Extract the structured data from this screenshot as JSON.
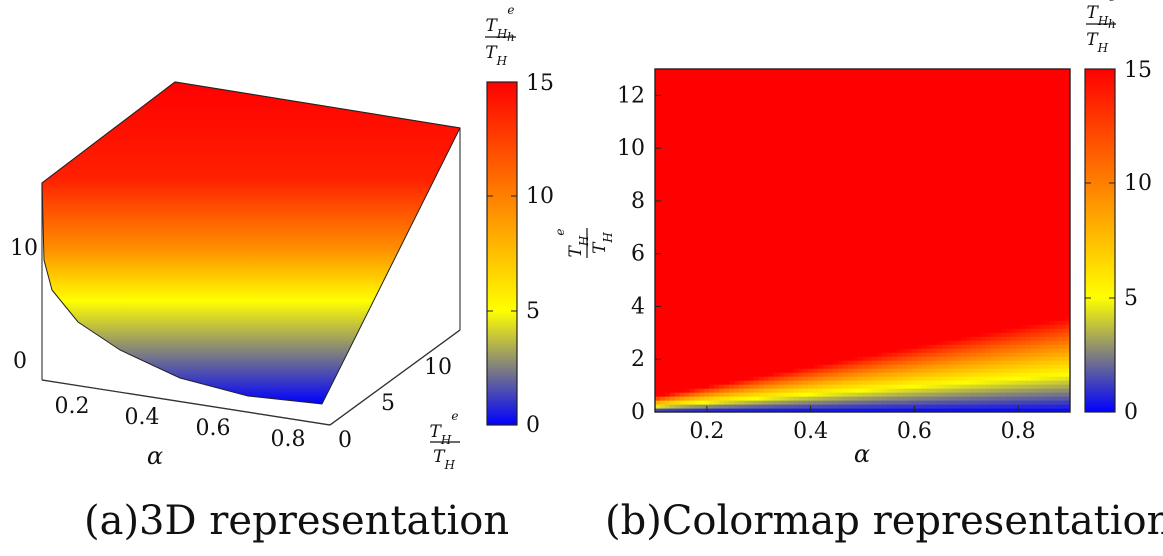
{
  "chart_data": [
    {
      "type": "heatmap",
      "variant": "3d-surface",
      "caption": "(a)3D representation",
      "xlabel": "α",
      "ylabel_frac": {
        "num": "T_H^e",
        "den": "T_H"
      },
      "xticks": [
        "0.2",
        "0.4",
        "0.6",
        "0.8"
      ],
      "yticks": [
        "0",
        "5",
        "10"
      ],
      "zticks": [
        "0",
        "10"
      ],
      "xlim": [
        0.1,
        0.9
      ],
      "ylim": [
        0,
        13
      ],
      "zlim": [
        0,
        15
      ],
      "colorbar": {
        "label_frac": {
          "num": "T_H^e",
          "den": "T_H^h"
        },
        "ticks": [
          "0",
          "5",
          "10",
          "15"
        ],
        "range": [
          0,
          15
        ],
        "colormap": [
          "#0000ff",
          "#ffff00",
          "#ff0000"
        ]
      },
      "surface": "T_H^e/T_H^h rises from 0 near T_H^e/T_H = 0 to saturate at 15 for large T_H^e/T_H; the surface is clipped at 15"
    },
    {
      "type": "heatmap",
      "variant": "colormap",
      "caption": "(b)Colormap representation",
      "xlabel": "α",
      "ylabel_frac": {
        "num": "T_H^e",
        "den": "T_H"
      },
      "xticks": [
        "0.2",
        "0.4",
        "0.6",
        "0.8"
      ],
      "yticks": [
        "0",
        "2",
        "4",
        "6",
        "8",
        "10",
        "12"
      ],
      "xlim": [
        0.1,
        0.9
      ],
      "ylim": [
        0,
        13
      ],
      "colorbar": {
        "label_frac": {
          "num": "T_H^e",
          "den": "T_H^h"
        },
        "ticks": [
          "0",
          "5",
          "10",
          "15"
        ],
        "range": [
          0,
          15
        ],
        "colormap": [
          "#0000ff",
          "#ffff00",
          "#ff0000"
        ]
      }
    }
  ]
}
